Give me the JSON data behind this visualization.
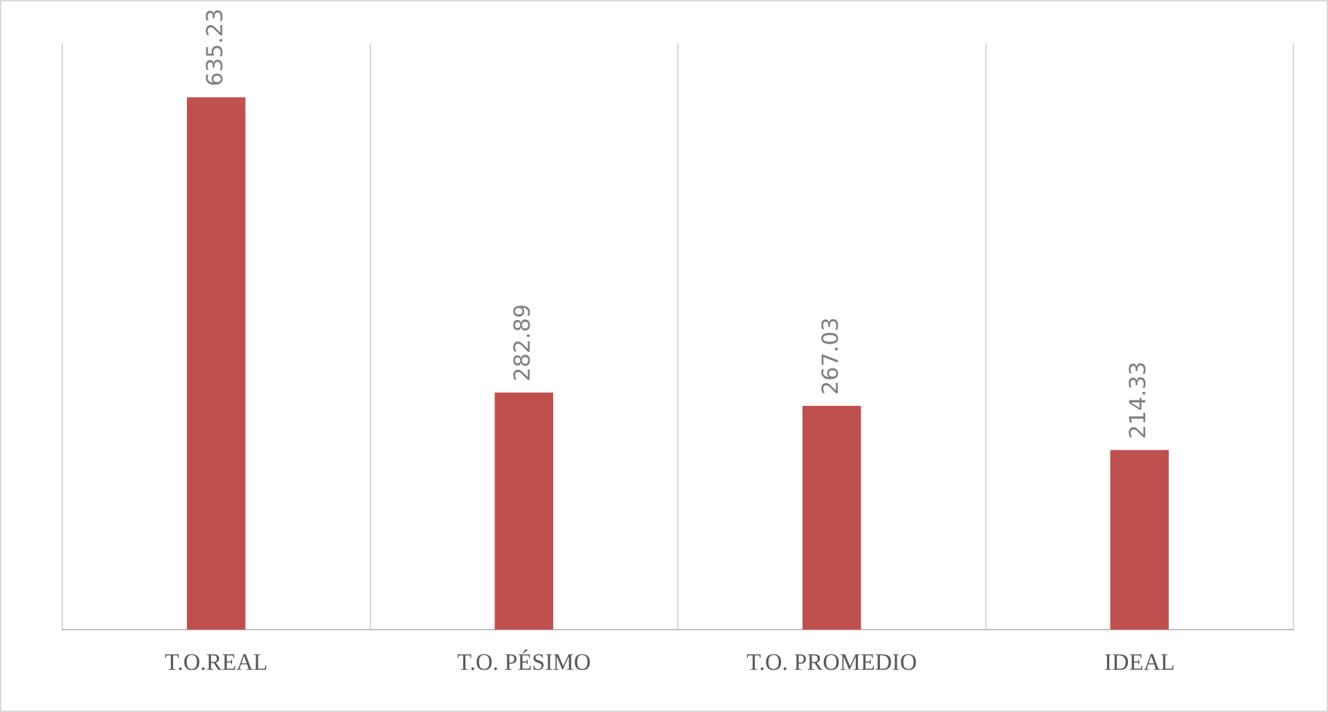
{
  "chart_data": {
    "type": "bar",
    "categories": [
      "T.O.REAL",
      "T.O. PÉSIMO",
      "T.O. PROMEDIO",
      "IDEAL"
    ],
    "values": [
      635.23,
      282.89,
      267.03,
      214.33
    ],
    "color": "#c0504d",
    "ylim": [
      0,
      700
    ],
    "grid": "x",
    "data_labels": true,
    "tick_labels": "x",
    "legend": false
  }
}
